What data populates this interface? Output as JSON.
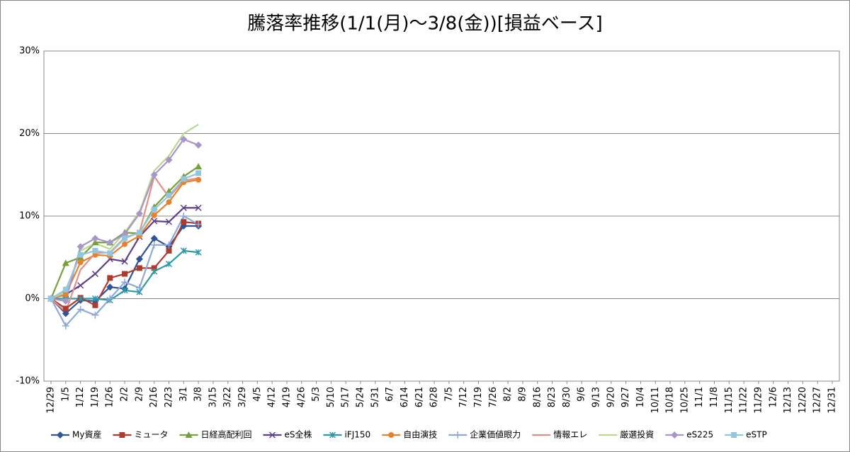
{
  "chart_data": {
    "type": "line",
    "title": "騰落率推移(1/1(月)～3/8(金))[損益ベース]",
    "categories": [
      "12/29",
      "1/5",
      "1/12",
      "1/19",
      "1/26",
      "2/2",
      "2/9",
      "2/16",
      "2/23",
      "3/1",
      "3/8",
      "3/15",
      "3/22",
      "3/29",
      "4/5",
      "4/12",
      "4/19",
      "4/26",
      "5/3",
      "5/10",
      "5/17",
      "5/24",
      "5/31",
      "6/7",
      "6/14",
      "6/21",
      "6/28",
      "7/5",
      "7/12",
      "7/19",
      "7/26",
      "8/2",
      "8/9",
      "8/16",
      "8/23",
      "8/30",
      "9/6",
      "9/13",
      "9/20",
      "9/27",
      "10/4",
      "10/11",
      "10/18",
      "10/25",
      "11/1",
      "11/8",
      "11/15",
      "11/22",
      "11/29",
      "12/6",
      "12/13",
      "12/20",
      "12/27",
      "12/31"
    ],
    "ylim": [
      -10,
      30
    ],
    "yticks": [
      {
        "value": -10,
        "label": "-10%"
      },
      {
        "value": 0,
        "label": "0%"
      },
      {
        "value": 10,
        "label": "10%"
      },
      {
        "value": 20,
        "label": "20%"
      },
      {
        "value": 30,
        "label": "30%"
      }
    ],
    "grid": true,
    "legend": "bottom",
    "series": [
      {
        "name": "My資産",
        "color": "#2f5597",
        "marker": "diamond",
        "values": [
          0,
          -1.8,
          -0.2,
          -0.3,
          1.4,
          1.2,
          4.8,
          7.3,
          6.3,
          8.8,
          8.8,
          null,
          null,
          null,
          null,
          null,
          null,
          null,
          null,
          null,
          null,
          null,
          null,
          null,
          null,
          null,
          null,
          null,
          null,
          null,
          null,
          null,
          null,
          null,
          null,
          null,
          null,
          null,
          null,
          null,
          null,
          null,
          null,
          null,
          null,
          null,
          null,
          null,
          null,
          null,
          null,
          null,
          null,
          null
        ]
      },
      {
        "name": "ミュータ",
        "color": "#b03a2e",
        "marker": "square",
        "values": [
          0,
          -1.2,
          0.1,
          -0.8,
          2.5,
          3.0,
          3.7,
          3.7,
          5.8,
          9.3,
          9.1,
          null,
          null,
          null,
          null,
          null,
          null,
          null,
          null,
          null,
          null,
          null,
          null,
          null,
          null,
          null,
          null,
          null,
          null,
          null,
          null,
          null,
          null,
          null,
          null,
          null,
          null,
          null,
          null,
          null,
          null,
          null,
          null,
          null,
          null,
          null,
          null,
          null,
          null,
          null,
          null,
          null,
          null,
          null
        ]
      },
      {
        "name": "日経高配利回",
        "color": "#77a03a",
        "marker": "triangle",
        "values": [
          0,
          4.3,
          5.0,
          6.8,
          6.8,
          8.0,
          7.9,
          11.1,
          13.0,
          14.8,
          16.0,
          null,
          null,
          null,
          null,
          null,
          null,
          null,
          null,
          null,
          null,
          null,
          null,
          null,
          null,
          null,
          null,
          null,
          null,
          null,
          null,
          null,
          null,
          null,
          null,
          null,
          null,
          null,
          null,
          null,
          null,
          null,
          null,
          null,
          null,
          null,
          null,
          null,
          null,
          null,
          null,
          null,
          null,
          null
        ]
      },
      {
        "name": "eS全株",
        "color": "#5f3f8a",
        "marker": "x",
        "values": [
          0,
          0.5,
          1.6,
          3.0,
          4.8,
          4.5,
          7.5,
          9.4,
          9.3,
          11.0,
          11.0,
          null,
          null,
          null,
          null,
          null,
          null,
          null,
          null,
          null,
          null,
          null,
          null,
          null,
          null,
          null,
          null,
          null,
          null,
          null,
          null,
          null,
          null,
          null,
          null,
          null,
          null,
          null,
          null,
          null,
          null,
          null,
          null,
          null,
          null,
          null,
          null,
          null,
          null,
          null,
          null,
          null,
          null,
          null
        ]
      },
      {
        "name": "iFJ150",
        "color": "#2e9aa8",
        "marker": "star",
        "values": [
          0,
          0,
          0,
          0,
          -0.2,
          1.0,
          0.8,
          3.3,
          4.2,
          5.8,
          5.6,
          null,
          null,
          null,
          null,
          null,
          null,
          null,
          null,
          null,
          null,
          null,
          null,
          null,
          null,
          null,
          null,
          null,
          null,
          null,
          null,
          null,
          null,
          null,
          null,
          null,
          null,
          null,
          null,
          null,
          null,
          null,
          null,
          null,
          null,
          null,
          null,
          null,
          null,
          null,
          null,
          null,
          null,
          null
        ]
      },
      {
        "name": "自由演技",
        "color": "#e8822a",
        "marker": "circle",
        "values": [
          0,
          0.5,
          4.4,
          5.3,
          5.2,
          6.6,
          7.6,
          10.1,
          11.7,
          14.1,
          14.4,
          null,
          null,
          null,
          null,
          null,
          null,
          null,
          null,
          null,
          null,
          null,
          null,
          null,
          null,
          null,
          null,
          null,
          null,
          null,
          null,
          null,
          null,
          null,
          null,
          null,
          null,
          null,
          null,
          null,
          null,
          null,
          null,
          null,
          null,
          null,
          null,
          null,
          null,
          null,
          null,
          null,
          null,
          null
        ]
      },
      {
        "name": "企業価値眼力",
        "color": "#8ea9d8",
        "marker": "plus",
        "values": [
          0,
          -3.3,
          -1.3,
          -2.0,
          0.0,
          2.0,
          1.3,
          6.5,
          6.5,
          10.0,
          9.0,
          null,
          null,
          null,
          null,
          null,
          null,
          null,
          null,
          null,
          null,
          null,
          null,
          null,
          null,
          null,
          null,
          null,
          null,
          null,
          null,
          null,
          null,
          null,
          null,
          null,
          null,
          null,
          null,
          null,
          null,
          null,
          null,
          null,
          null,
          null,
          null,
          null,
          null,
          null,
          null,
          null,
          null,
          null
        ]
      },
      {
        "name": "情報エレ",
        "color": "#e0908a",
        "marker": "none",
        "values": [
          0,
          -1.6,
          3.5,
          5.5,
          5.6,
          7.4,
          8.0,
          14.8,
          12.3,
          14.3,
          14.6,
          null,
          null,
          null,
          null,
          null,
          null,
          null,
          null,
          null,
          null,
          null,
          null,
          null,
          null,
          null,
          null,
          null,
          null,
          null,
          null,
          null,
          null,
          null,
          null,
          null,
          null,
          null,
          null,
          null,
          null,
          null,
          null,
          null,
          null,
          null,
          null,
          null,
          null,
          null,
          null,
          null,
          null,
          null
        ]
      },
      {
        "name": "厳選投資",
        "color": "#b9d88e",
        "marker": "none",
        "values": [
          0,
          0.8,
          5.8,
          6.7,
          6.0,
          8.0,
          10.5,
          15.5,
          17.3,
          20.0,
          21.1,
          null,
          null,
          null,
          null,
          null,
          null,
          null,
          null,
          null,
          null,
          null,
          null,
          null,
          null,
          null,
          null,
          null,
          null,
          null,
          null,
          null,
          null,
          null,
          null,
          null,
          null,
          null,
          null,
          null,
          null,
          null,
          null,
          null,
          null,
          null,
          null,
          null,
          null,
          null,
          null,
          null,
          null,
          null
        ]
      },
      {
        "name": "eS225",
        "color": "#a896c8",
        "marker": "diamond",
        "values": [
          0,
          -0.3,
          6.3,
          7.3,
          6.8,
          7.8,
          10.3,
          15.0,
          16.8,
          19.3,
          18.6,
          null,
          null,
          null,
          null,
          null,
          null,
          null,
          null,
          null,
          null,
          null,
          null,
          null,
          null,
          null,
          null,
          null,
          null,
          null,
          null,
          null,
          null,
          null,
          null,
          null,
          null,
          null,
          null,
          null,
          null,
          null,
          null,
          null,
          null,
          null,
          null,
          null,
          null,
          null,
          null,
          null,
          null,
          null
        ]
      },
      {
        "name": "eSTP",
        "color": "#92c5de",
        "marker": "square",
        "values": [
          0,
          1.1,
          5.3,
          5.8,
          5.5,
          7.3,
          8.0,
          10.8,
          12.5,
          14.5,
          15.2,
          null,
          null,
          null,
          null,
          null,
          null,
          null,
          null,
          null,
          null,
          null,
          null,
          null,
          null,
          null,
          null,
          null,
          null,
          null,
          null,
          null,
          null,
          null,
          null,
          null,
          null,
          null,
          null,
          null,
          null,
          null,
          null,
          null,
          null,
          null,
          null,
          null,
          null,
          null,
          null,
          null,
          null,
          null
        ]
      }
    ]
  }
}
